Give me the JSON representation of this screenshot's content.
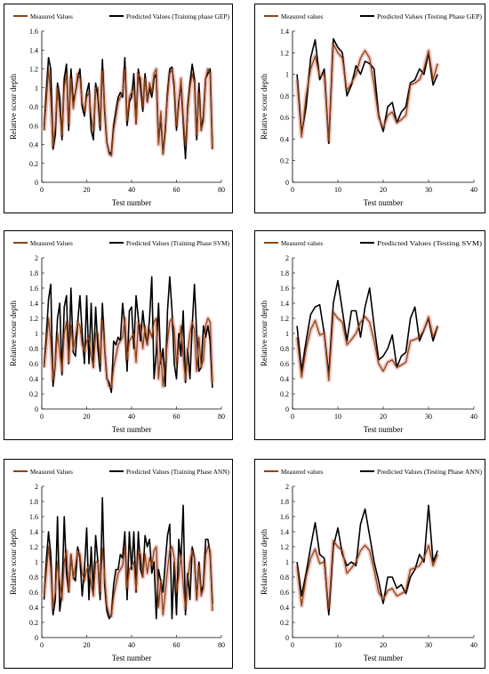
{
  "colors": {
    "measured": "#8B4513",
    "measured_bg": "#F2C9C9",
    "predicted": "#000000"
  },
  "chart_data": [
    {
      "type": "line",
      "panel": "gep-training",
      "xlabel": "Test number",
      "ylabel": "Relative scour depth",
      "xlim": [
        0,
        80
      ],
      "ylim": [
        0,
        1.6
      ],
      "xticks": [
        0,
        20,
        40,
        60,
        80
      ],
      "yticks": [
        0,
        0.2,
        0.4,
        0.6,
        0.8,
        1,
        1.2,
        1.4,
        1.6
      ],
      "series": [
        {
          "name": "Measured Values",
          "values": [
            0.55,
            0.85,
            1.2,
            0.9,
            0.38,
            0.6,
            1.0,
            0.75,
            0.5,
            1.0,
            1.15,
            0.62,
            1.1,
            0.78,
            0.95,
            1.15,
            1.1,
            0.85,
            0.75,
            0.9,
            0.95,
            0.7,
            0.55,
            1.0,
            1.0,
            0.6,
            1.18,
            0.8,
            0.42,
            0.3,
            0.28,
            0.55,
            0.7,
            0.85,
            0.9,
            0.95,
            1.2,
            0.65,
            0.9,
            0.95,
            1.0,
            0.62,
            1.15,
            1.1,
            0.8,
            1.1,
            0.85,
            1.05,
            0.95,
            1.15,
            1.2,
            0.4,
            0.75,
            0.3,
            0.6,
            0.9,
            1.15,
            1.2,
            1.05,
            0.6,
            0.8,
            1.1,
            0.7,
            0.38,
            0.75,
            1.0,
            1.15,
            1.05,
            0.5,
            0.95,
            0.55,
            0.65,
            1.1,
            1.2,
            1.15,
            0.35
          ]
        },
        {
          "name": "Predicted Values (Training phase GEP)",
          "values": [
            0.55,
            0.95,
            1.32,
            1.2,
            0.35,
            0.5,
            1.05,
            0.9,
            0.45,
            1.1,
            1.25,
            0.55,
            1.2,
            0.85,
            0.95,
            1.1,
            1.2,
            0.8,
            0.7,
            0.95,
            1.05,
            0.55,
            0.45,
            1.05,
            0.9,
            0.55,
            1.3,
            0.75,
            0.42,
            0.32,
            0.3,
            0.6,
            0.75,
            0.9,
            0.95,
            0.9,
            1.32,
            0.6,
            0.85,
            0.9,
            1.15,
            0.62,
            1.2,
            1.0,
            0.75,
            1.15,
            0.85,
            1.0,
            0.9,
            1.1,
            1.15,
            0.42,
            0.7,
            0.3,
            0.55,
            0.95,
            1.2,
            1.22,
            1.0,
            0.55,
            0.85,
            1.05,
            0.65,
            0.25,
            0.8,
            1.05,
            1.25,
            1.1,
            0.45,
            1.05,
            0.55,
            0.7,
            1.1,
            1.15,
            1.2,
            0.35
          ]
        }
      ]
    },
    {
      "type": "line",
      "panel": "gep-testing",
      "xlabel": "Test number",
      "ylabel": "Relative scour depth",
      "xlim": [
        0,
        40
      ],
      "ylim": [
        0,
        1.4
      ],
      "xticks": [
        0,
        10,
        20,
        30,
        40
      ],
      "yticks": [
        0,
        0.2,
        0.4,
        0.6,
        0.8,
        1,
        1.2,
        1.4
      ],
      "series": [
        {
          "name": "Measured values",
          "values": [
            0.95,
            0.42,
            0.8,
            1.05,
            1.17,
            0.98,
            1.0,
            0.38,
            1.28,
            1.2,
            1.15,
            0.85,
            0.92,
            1.0,
            1.15,
            1.22,
            1.15,
            0.9,
            0.6,
            0.5,
            0.62,
            0.65,
            0.55,
            0.58,
            0.62,
            0.9,
            0.92,
            0.95,
            1.05,
            1.22,
            0.95,
            1.1
          ]
        },
        {
          "name": "Predicted Values (Testing Phase GEP)",
          "values": [
            1.0,
            0.45,
            0.7,
            1.15,
            1.32,
            0.95,
            1.05,
            0.36,
            1.33,
            1.25,
            1.2,
            0.8,
            0.9,
            1.08,
            1.0,
            1.12,
            1.1,
            1.05,
            0.62,
            0.47,
            0.7,
            0.74,
            0.55,
            0.65,
            0.7,
            0.92,
            0.95,
            1.05,
            1.0,
            1.2,
            0.9,
            1.0
          ]
        }
      ]
    },
    {
      "type": "line",
      "panel": "svm-training",
      "xlabel": "Test number",
      "ylabel": "Relative scour depth",
      "xlim": [
        0,
        80
      ],
      "ylim": [
        0,
        2
      ],
      "xticks": [
        0,
        20,
        40,
        60,
        80
      ],
      "yticks": [
        0,
        0.2,
        0.4,
        0.6,
        0.8,
        1,
        1.2,
        1.4,
        1.6,
        1.8,
        2
      ],
      "series": [
        {
          "name": "Measured Values",
          "values": [
            0.55,
            0.85,
            1.2,
            0.9,
            0.38,
            0.6,
            1.0,
            0.75,
            0.5,
            1.0,
            1.15,
            0.62,
            1.1,
            0.78,
            0.95,
            1.15,
            1.1,
            0.85,
            0.75,
            0.9,
            0.95,
            0.7,
            0.55,
            1.0,
            1.0,
            0.6,
            1.18,
            0.8,
            0.42,
            0.3,
            0.28,
            0.55,
            0.7,
            0.85,
            0.9,
            0.95,
            1.2,
            0.65,
            0.9,
            0.95,
            1.0,
            0.62,
            1.15,
            1.1,
            0.8,
            1.1,
            0.85,
            1.05,
            0.95,
            1.15,
            1.2,
            0.4,
            0.75,
            0.3,
            0.6,
            0.9,
            1.15,
            1.2,
            1.05,
            0.6,
            0.8,
            1.1,
            0.7,
            0.38,
            0.75,
            1.0,
            1.15,
            1.05,
            0.5,
            0.95,
            0.55,
            0.65,
            1.1,
            1.2,
            1.15,
            0.35
          ]
        },
        {
          "name": "Predicted Values (Training Phase SVM)",
          "values": [
            0.55,
            0.95,
            1.45,
            1.65,
            0.3,
            0.6,
            1.2,
            1.4,
            0.45,
            1.35,
            1.5,
            0.6,
            1.6,
            0.75,
            0.7,
            1.15,
            1.5,
            1.0,
            0.6,
            1.5,
            0.6,
            1.4,
            0.55,
            1.35,
            0.8,
            0.5,
            1.4,
            0.8,
            0.4,
            0.35,
            0.22,
            0.9,
            0.85,
            0.95,
            0.9,
            1.4,
            1.1,
            0.5,
            1.3,
            1.35,
            0.8,
            1.5,
            1.2,
            0.9,
            1.3,
            1.0,
            0.85,
            1.2,
            1.75,
            0.4,
            0.75,
            1.4,
            0.6,
            0.8,
            0.3,
            1.3,
            1.75,
            1.3,
            0.6,
            0.4,
            1.0,
            0.7,
            1.3,
            0.35,
            0.8,
            0.4,
            1.1,
            1.65,
            1.0,
            0.5,
            0.55,
            1.1,
            0.95,
            1.1,
            0.9,
            0.28
          ]
        }
      ]
    },
    {
      "type": "line",
      "panel": "svm-testing",
      "xlabel": "Test number",
      "ylabel": "Relative scour depth",
      "xlim": [
        0,
        40
      ],
      "ylim": [
        0,
        2
      ],
      "xticks": [
        0,
        10,
        20,
        30,
        40
      ],
      "yticks": [
        0,
        0.2,
        0.4,
        0.6,
        0.8,
        1,
        1.2,
        1.4,
        1.6,
        1.8,
        2
      ],
      "series": [
        {
          "name": "Measured values",
          "values": [
            0.95,
            0.42,
            0.8,
            1.05,
            1.17,
            0.98,
            1.0,
            0.38,
            1.28,
            1.2,
            1.15,
            0.85,
            0.92,
            1.0,
            1.15,
            1.22,
            1.15,
            0.9,
            0.6,
            0.5,
            0.62,
            0.65,
            0.55,
            0.58,
            0.62,
            0.9,
            0.92,
            0.95,
            1.05,
            1.22,
            0.95,
            1.1
          ]
        },
        {
          "name": "Predicted Values (Testing SVM)",
          "values": [
            1.1,
            0.5,
            0.9,
            1.25,
            1.35,
            1.38,
            1.0,
            0.45,
            1.4,
            1.7,
            1.3,
            0.9,
            1.3,
            1.3,
            0.95,
            1.35,
            1.6,
            1.1,
            0.65,
            0.7,
            0.8,
            0.98,
            0.55,
            0.7,
            0.75,
            1.2,
            1.35,
            0.9,
            1.05,
            1.2,
            0.9,
            1.1
          ]
        }
      ]
    },
    {
      "type": "line",
      "panel": "ann-training",
      "xlabel": "Test number",
      "ylabel": "Relative scour depth",
      "xlim": [
        0,
        80
      ],
      "ylim": [
        0,
        2
      ],
      "xticks": [
        0,
        20,
        40,
        60,
        80
      ],
      "yticks": [
        0,
        0.2,
        0.4,
        0.6,
        0.8,
        1,
        1.2,
        1.4,
        1.6,
        1.8,
        2
      ],
      "series": [
        {
          "name": "Measured Values",
          "values": [
            0.55,
            0.85,
            1.2,
            0.9,
            0.38,
            0.6,
            1.0,
            0.75,
            0.5,
            1.0,
            1.15,
            0.62,
            1.1,
            0.78,
            0.95,
            1.15,
            1.1,
            0.85,
            0.75,
            0.9,
            0.95,
            0.7,
            0.55,
            1.0,
            1.0,
            0.6,
            1.18,
            0.8,
            0.42,
            0.3,
            0.28,
            0.55,
            0.7,
            0.85,
            0.9,
            0.95,
            1.2,
            0.65,
            0.9,
            0.95,
            1.0,
            0.62,
            1.15,
            1.1,
            0.8,
            1.1,
            0.85,
            1.05,
            0.95,
            1.15,
            1.2,
            0.4,
            0.75,
            0.3,
            0.6,
            0.9,
            1.15,
            1.2,
            1.05,
            0.6,
            0.8,
            1.1,
            0.7,
            0.38,
            0.75,
            1.0,
            1.15,
            1.05,
            0.5,
            0.95,
            0.55,
            0.65,
            1.1,
            1.2,
            1.15,
            0.35
          ]
        },
        {
          "name": "Predicted Values (Training Phase ANN)",
          "values": [
            0.5,
            1.0,
            1.4,
            1.1,
            0.3,
            0.5,
            1.6,
            0.35,
            0.6,
            1.6,
            0.85,
            0.6,
            1.1,
            0.8,
            0.75,
            1.2,
            1.05,
            0.55,
            0.9,
            1.45,
            0.5,
            1.2,
            0.6,
            1.35,
            1.0,
            0.5,
            1.85,
            0.7,
            0.35,
            0.25,
            0.3,
            0.7,
            0.9,
            0.9,
            1.1,
            1.05,
            1.4,
            0.5,
            1.4,
            0.9,
            1.4,
            0.6,
            1.4,
            0.9,
            0.8,
            1.35,
            1.2,
            1.3,
            0.85,
            1.0,
            0.25,
            0.9,
            0.75,
            0.6,
            1.0,
            1.35,
            1.5,
            0.25,
            1.0,
            0.3,
            1.3,
            1.0,
            1.75,
            0.3,
            0.85,
            0.5,
            1.2,
            1.05,
            0.5,
            1.0,
            0.6,
            0.7,
            1.3,
            1.3,
            1.1,
            0.45
          ]
        }
      ]
    },
    {
      "type": "line",
      "panel": "ann-testing",
      "xlabel": "Test number",
      "ylabel": "Relative scour depth",
      "xlim": [
        0,
        40
      ],
      "ylim": [
        0,
        2
      ],
      "xticks": [
        0,
        10,
        20,
        30,
        40
      ],
      "yticks": [
        0,
        0.2,
        0.4,
        0.6,
        0.8,
        1,
        1.2,
        1.4,
        1.6,
        1.8,
        2
      ],
      "series": [
        {
          "name": "Measured values",
          "values": [
            0.95,
            0.42,
            0.8,
            1.05,
            1.17,
            0.98,
            1.0,
            0.38,
            1.28,
            1.2,
            1.15,
            0.85,
            0.92,
            1.0,
            1.15,
            1.22,
            1.15,
            0.9,
            0.6,
            0.5,
            0.62,
            0.65,
            0.55,
            0.58,
            0.62,
            0.9,
            0.92,
            0.95,
            1.05,
            1.22,
            0.95,
            1.1
          ]
        },
        {
          "name": "Predicted Values (Testing Phase ANN)",
          "values": [
            1.0,
            0.55,
            0.85,
            1.2,
            1.52,
            1.1,
            1.05,
            0.3,
            1.2,
            1.45,
            1.1,
            0.95,
            1.0,
            0.95,
            1.5,
            1.7,
            1.35,
            1.0,
            0.75,
            0.45,
            0.8,
            0.8,
            0.65,
            0.7,
            0.58,
            0.8,
            0.9,
            1.1,
            1.0,
            1.75,
            1.0,
            1.15
          ]
        }
      ]
    }
  ]
}
